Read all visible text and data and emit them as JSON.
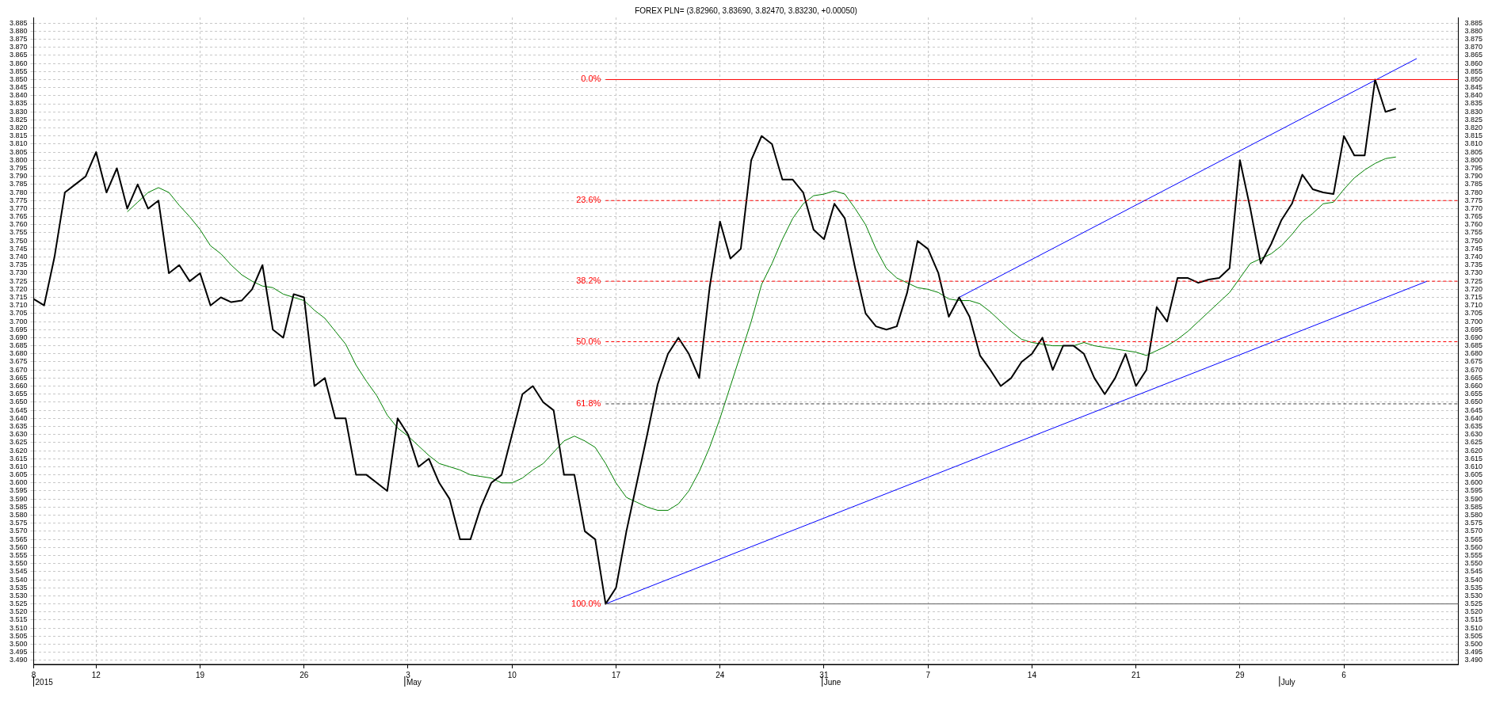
{
  "chart_data": {
    "type": "line",
    "title": "FOREX PLN= (3.82960, 3.83690, 3.82470, 3.83230, +0.00050)",
    "categories": [
      "8",
      null,
      null,
      null,
      null,
      null,
      "12",
      null,
      null,
      null,
      null,
      null,
      null,
      null,
      null,
      null,
      "19",
      null,
      null,
      null,
      null,
      null,
      null,
      null,
      null,
      null,
      "26",
      null,
      null,
      null,
      null,
      null,
      null,
      null,
      null,
      null,
      "3",
      null,
      null,
      null,
      null,
      null,
      null,
      null,
      null,
      null,
      "10",
      null,
      null,
      null,
      null,
      null,
      null,
      null,
      null,
      null,
      "17",
      null,
      null,
      null,
      null,
      null,
      null,
      null,
      null,
      null,
      "24",
      null,
      null,
      null,
      null,
      null,
      null,
      null,
      null,
      null,
      "31",
      null,
      null,
      null,
      null,
      null,
      null,
      null,
      null,
      null,
      "7",
      null,
      null,
      null,
      null,
      null,
      null,
      null,
      null,
      null,
      "14",
      null,
      null,
      null,
      null,
      null,
      null,
      null,
      null,
      null,
      "21",
      null,
      null,
      null,
      null,
      null,
      null,
      null,
      null,
      null,
      "29",
      null,
      null,
      null,
      null,
      null,
      null,
      null,
      null,
      null,
      "6",
      null,
      null,
      null,
      null,
      null,
      null,
      null,
      null,
      null,
      null,
      null
    ],
    "series": [
      {
        "color": "#000000",
        "values": [
          3.714,
          3.71,
          3.74,
          3.78,
          3.785,
          3.79,
          3.805,
          3.78,
          3.795,
          3.77,
          3.785,
          3.77,
          3.775,
          3.73,
          3.735,
          3.725,
          3.73,
          3.71,
          3.715,
          3.712,
          3.713,
          3.72,
          3.735,
          3.695,
          3.69,
          3.717,
          3.715,
          3.66,
          3.665,
          3.64,
          3.64,
          3.605,
          3.605,
          3.6,
          3.595,
          3.64,
          3.63,
          3.61,
          3.615,
          3.6,
          3.59,
          3.565,
          3.565,
          3.585,
          3.6,
          3.605,
          3.63,
          3.655,
          3.66,
          3.65,
          3.645,
          3.605,
          3.605,
          3.57,
          3.565,
          3.525,
          3.535,
          3.57,
          3.6,
          3.63,
          3.661,
          3.68,
          3.69,
          3.68,
          3.665,
          3.721,
          3.762,
          3.739,
          3.745,
          3.8,
          3.815,
          3.81,
          3.788,
          3.788,
          3.78,
          3.757,
          3.751,
          3.773,
          3.764,
          3.733,
          3.705,
          3.697,
          3.695,
          3.697,
          3.718,
          3.75,
          3.745,
          3.73,
          3.703,
          3.715,
          3.703,
          3.679,
          3.67,
          3.66,
          3.665,
          3.675,
          3.68,
          3.69,
          3.67,
          3.685,
          3.685,
          3.68,
          3.665,
          3.655,
          3.665,
          3.68,
          3.66,
          3.67,
          3.709,
          3.7,
          3.727,
          3.727,
          3.724,
          3.726,
          3.727,
          3.733,
          3.8,
          3.77,
          3.736,
          3.748,
          3.763,
          3.773,
          3.791,
          3.782,
          3.78,
          3.779,
          3.815,
          3.803,
          3.803,
          3.85,
          3.83,
          3.832,
          null,
          null,
          null,
          null,
          null,
          null
        ]
      },
      {
        "color": "#008000",
        "values": [
          null,
          null,
          null,
          null,
          null,
          null,
          null,
          null,
          null,
          3.768,
          3.774,
          3.78,
          3.783,
          3.78,
          3.772,
          3.765,
          3.757,
          3.747,
          3.742,
          3.735,
          3.729,
          3.725,
          3.722,
          3.721,
          3.717,
          3.715,
          3.713,
          3.707,
          3.702,
          3.694,
          3.686,
          3.673,
          3.663,
          3.654,
          3.642,
          3.634,
          3.629,
          3.623,
          3.617,
          3.612,
          3.61,
          3.608,
          3.605,
          3.604,
          3.603,
          3.6,
          3.6,
          3.603,
          3.608,
          3.612,
          3.619,
          3.626,
          3.629,
          3.626,
          3.622,
          3.612,
          3.6,
          3.591,
          3.588,
          3.585,
          3.583,
          3.583,
          3.587,
          3.595,
          3.607,
          3.622,
          3.64,
          3.66,
          3.68,
          3.7,
          3.723,
          3.736,
          3.751,
          3.764,
          3.773,
          3.778,
          3.779,
          3.781,
          3.779,
          3.77,
          3.76,
          3.745,
          3.733,
          3.727,
          3.724,
          3.721,
          3.72,
          3.718,
          3.714,
          3.713,
          3.713,
          3.711,
          3.706,
          3.7,
          3.694,
          3.689,
          3.687,
          3.686,
          3.685,
          3.685,
          3.685,
          3.687,
          3.685,
          3.684,
          3.683,
          3.682,
          3.681,
          3.679,
          3.682,
          3.685,
          3.689,
          3.694,
          3.7,
          3.706,
          3.712,
          3.718,
          3.727,
          3.736,
          3.739,
          3.742,
          3.747,
          3.754,
          3.762,
          3.767,
          3.773,
          3.774,
          3.782,
          3.789,
          3.794,
          3.798,
          3.801,
          3.802,
          null,
          null,
          null,
          null,
          null,
          null
        ]
      },
      {
        "color": "#0000ff",
        "values": [
          null,
          null,
          null,
          null,
          null,
          null,
          null,
          null,
          null,
          null,
          null,
          null,
          null,
          null,
          null,
          null,
          null,
          null,
          null,
          null,
          null,
          null,
          null,
          null,
          null,
          null,
          null,
          null,
          null,
          null,
          null,
          null,
          null,
          null,
          null,
          null,
          null,
          null,
          null,
          null,
          null,
          null,
          null,
          null,
          null,
          null,
          null,
          null,
          null,
          null,
          null,
          null,
          null,
          null,
          null,
          3.525,
          null,
          null,
          null,
          null,
          null,
          null,
          null,
          null,
          null,
          null,
          null,
          null,
          null,
          null,
          null,
          null,
          null,
          null,
          null,
          null,
          null,
          null,
          null,
          null,
          null,
          null,
          null,
          null,
          null,
          null,
          null,
          null,
          null,
          null,
          null,
          null,
          null,
          null,
          null,
          null,
          null,
          null,
          null,
          null,
          null,
          null,
          null,
          null,
          null,
          null,
          null,
          null,
          null,
          null,
          null,
          null,
          null,
          null,
          null,
          null,
          null,
          null,
          null,
          null,
          null,
          null,
          null,
          null,
          null,
          null,
          null,
          null,
          null,
          null,
          null,
          null,
          null,
          null,
          3.725,
          null,
          null,
          null
        ]
      },
      {
        "color": "#0000ff",
        "values": [
          null,
          null,
          null,
          null,
          null,
          null,
          null,
          null,
          null,
          null,
          null,
          null,
          null,
          null,
          null,
          null,
          null,
          null,
          null,
          null,
          null,
          null,
          null,
          null,
          null,
          null,
          null,
          null,
          null,
          null,
          null,
          null,
          null,
          null,
          null,
          null,
          null,
          null,
          null,
          null,
          null,
          null,
          null,
          null,
          null,
          null,
          null,
          null,
          null,
          null,
          null,
          null,
          null,
          null,
          null,
          null,
          null,
          null,
          null,
          null,
          null,
          null,
          null,
          null,
          null,
          null,
          null,
          null,
          null,
          null,
          null,
          null,
          null,
          null,
          null,
          null,
          null,
          null,
          null,
          null,
          null,
          null,
          null,
          null,
          null,
          null,
          null,
          null,
          null,
          3.715,
          null,
          null,
          null,
          null,
          null,
          null,
          null,
          null,
          null,
          null,
          null,
          null,
          null,
          null,
          null,
          null,
          null,
          null,
          null,
          null,
          null,
          null,
          null,
          null,
          null,
          null,
          null,
          null,
          null,
          null,
          null,
          null,
          null,
          null,
          null,
          null,
          null,
          null,
          null,
          null,
          null,
          null,
          null,
          3.863,
          null,
          null,
          null,
          null
        ]
      }
    ],
    "ylim": [
      3.4875,
      3.8885
    ],
    "yticks": [
      {
        "value": 3.49,
        "label": "3.490"
      },
      3.495,
      {
        "value": 3.5,
        "label": "3.500"
      },
      3.505,
      {
        "value": 3.51,
        "label": "3.510"
      },
      3.515,
      {
        "value": 3.52,
        "label": "3.520"
      },
      3.525,
      {
        "value": 3.53,
        "label": "3.530"
      },
      3.535,
      {
        "value": 3.54,
        "label": "3.540"
      },
      3.545,
      {
        "value": 3.55,
        "label": "3.550"
      },
      3.555,
      {
        "value": 3.56,
        "label": "3.560"
      },
      3.565,
      {
        "value": 3.57,
        "label": "3.570"
      },
      3.575,
      {
        "value": 3.58,
        "label": "3.580"
      },
      3.585,
      {
        "value": 3.59,
        "label": "3.590"
      },
      3.595,
      {
        "value": 3.6,
        "label": "3.600"
      },
      3.605,
      {
        "value": 3.61,
        "label": "3.610"
      },
      3.615,
      {
        "value": 3.62,
        "label": "3.620"
      },
      3.625,
      {
        "value": 3.63,
        "label": "3.630"
      },
      3.635,
      {
        "value": 3.64,
        "label": "3.640"
      },
      3.645,
      {
        "value": 3.65,
        "label": "3.650"
      },
      3.655,
      {
        "value": 3.66,
        "label": "3.660"
      },
      3.665,
      {
        "value": 3.67,
        "label": "3.670"
      },
      3.675,
      {
        "value": 3.68,
        "label": "3.680"
      },
      3.685,
      {
        "value": 3.69,
        "label": "3.690"
      },
      3.695,
      {
        "value": 3.7,
        "label": "3.700"
      },
      3.705,
      {
        "value": 3.71,
        "label": "3.710"
      },
      3.715,
      {
        "value": 3.72,
        "label": "3.720"
      },
      3.725,
      {
        "value": 3.73,
        "label": "3.730"
      },
      3.735,
      {
        "value": 3.74,
        "label": "3.740"
      },
      3.745,
      {
        "value": 3.75,
        "label": "3.750"
      },
      3.755,
      {
        "value": 3.76,
        "label": "3.760"
      },
      3.765,
      {
        "value": 3.77,
        "label": "3.770"
      },
      3.775,
      {
        "value": 3.78,
        "label": "3.780"
      },
      3.785,
      {
        "value": 3.79,
        "label": "3.790"
      },
      3.795,
      {
        "value": 3.8,
        "label": "3.800"
      },
      3.805,
      {
        "value": 3.81,
        "label": "3.810"
      },
      3.815,
      {
        "value": 3.82,
        "label": "3.820"
      },
      3.825,
      {
        "value": 3.83,
        "label": "3.830"
      },
      3.835,
      {
        "value": 3.84,
        "label": "3.840"
      },
      3.845,
      {
        "value": 3.85,
        "label": "3.850"
      },
      3.855,
      {
        "value": 3.86,
        "label": "3.860"
      },
      3.865,
      {
        "value": 3.87,
        "label": "3.870"
      },
      3.875,
      {
        "value": 3.88,
        "label": "3.880"
      },
      3.885
    ],
    "y2lim": [
      3.4875,
      3.8885
    ],
    "y2ticks": [
      {
        "value": 3.49,
        "label": "3.490"
      },
      3.495,
      {
        "value": 3.5,
        "label": "3.500"
      },
      3.505,
      {
        "value": 3.51,
        "label": "3.510"
      },
      3.515,
      {
        "value": 3.52,
        "label": "3.520"
      },
      3.525,
      {
        "value": 3.53,
        "label": "3.530"
      },
      3.535,
      {
        "value": 3.54,
        "label": "3.540"
      },
      3.545,
      {
        "value": 3.55,
        "label": "3.550"
      },
      3.555,
      {
        "value": 3.56,
        "label": "3.560"
      },
      3.565,
      {
        "value": 3.57,
        "label": "3.570"
      },
      3.575,
      {
        "value": 3.58,
        "label": "3.580"
      },
      3.585,
      {
        "value": 3.59,
        "label": "3.590"
      },
      3.595,
      {
        "value": 3.6,
        "label": "3.600"
      },
      3.605,
      {
        "value": 3.61,
        "label": "3.610"
      },
      3.615,
      {
        "value": 3.62,
        "label": "3.620"
      },
      3.625,
      {
        "value": 3.63,
        "label": "3.630"
      },
      3.635,
      {
        "value": 3.64,
        "label": "3.640"
      },
      3.645,
      {
        "value": 3.65,
        "label": "3.650"
      },
      3.655,
      {
        "value": 3.66,
        "label": "3.660"
      },
      3.665,
      {
        "value": 3.67,
        "label": "3.670"
      },
      3.675,
      {
        "value": 3.68,
        "label": "3.680"
      },
      3.685,
      {
        "value": 3.69,
        "label": "3.690"
      },
      3.695,
      {
        "value": 3.7,
        "label": "3.700"
      },
      3.705,
      {
        "value": 3.71,
        "label": "3.710"
      },
      3.715,
      {
        "value": 3.72,
        "label": "3.720"
      },
      3.725,
      {
        "value": 3.73,
        "label": "3.730"
      },
      3.735,
      {
        "value": 3.74,
        "label": "3.740"
      },
      3.745,
      {
        "value": 3.75,
        "label": "3.750"
      },
      3.755,
      {
        "value": 3.76,
        "label": "3.760"
      },
      3.765,
      {
        "value": 3.77,
        "label": "3.770"
      },
      3.775,
      {
        "value": 3.78,
        "label": "3.780"
      },
      3.785,
      {
        "value": 3.79,
        "label": "3.790"
      },
      3.795,
      {
        "value": 3.8,
        "label": "3.800"
      },
      3.805,
      {
        "value": 3.81,
        "label": "3.810"
      },
      3.815,
      {
        "value": 3.82,
        "label": "3.820"
      },
      3.825,
      {
        "value": 3.83,
        "label": "3.830"
      },
      3.835,
      {
        "value": 3.84,
        "label": "3.840"
      },
      3.845,
      {
        "value": 3.85,
        "label": "3.850"
      },
      3.855,
      {
        "value": 3.86,
        "label": "3.860"
      },
      3.865,
      {
        "value": 3.87,
        "label": "3.870"
      },
      3.875,
      {
        "value": 3.88,
        "label": "3.880"
      },
      3.885
    ],
    "ref_lines": [
      {
        "axis": "y",
        "value": 3.85,
        "color": "#ff0000",
        "line_style": "solid"
      },
      {
        "axis": "y",
        "value": 3.775,
        "color": "#ff0000",
        "line_style": "dashed"
      },
      {
        "axis": "y",
        "value": 3.725,
        "color": "#ff0000",
        "line_style": "dashed"
      },
      {
        "axis": "y",
        "value": 3.6875,
        "color": "#ff0000",
        "line_style": "dashed"
      },
      {
        "axis": "y",
        "value": 3.649,
        "color": "#404040",
        "line_style": "dashed"
      },
      {
        "axis": "y",
        "value": 3.525,
        "color": "#606060",
        "line_style": "solid"
      }
    ],
    "annotations": [
      "0.0%",
      "23.6%",
      "38.2%",
      "50.0%",
      "61.8%",
      "100.0%",
      "2015",
      "May",
      "June",
      "July"
    ],
    "grid": true,
    "marker": "none",
    "line_style": "solid"
  }
}
